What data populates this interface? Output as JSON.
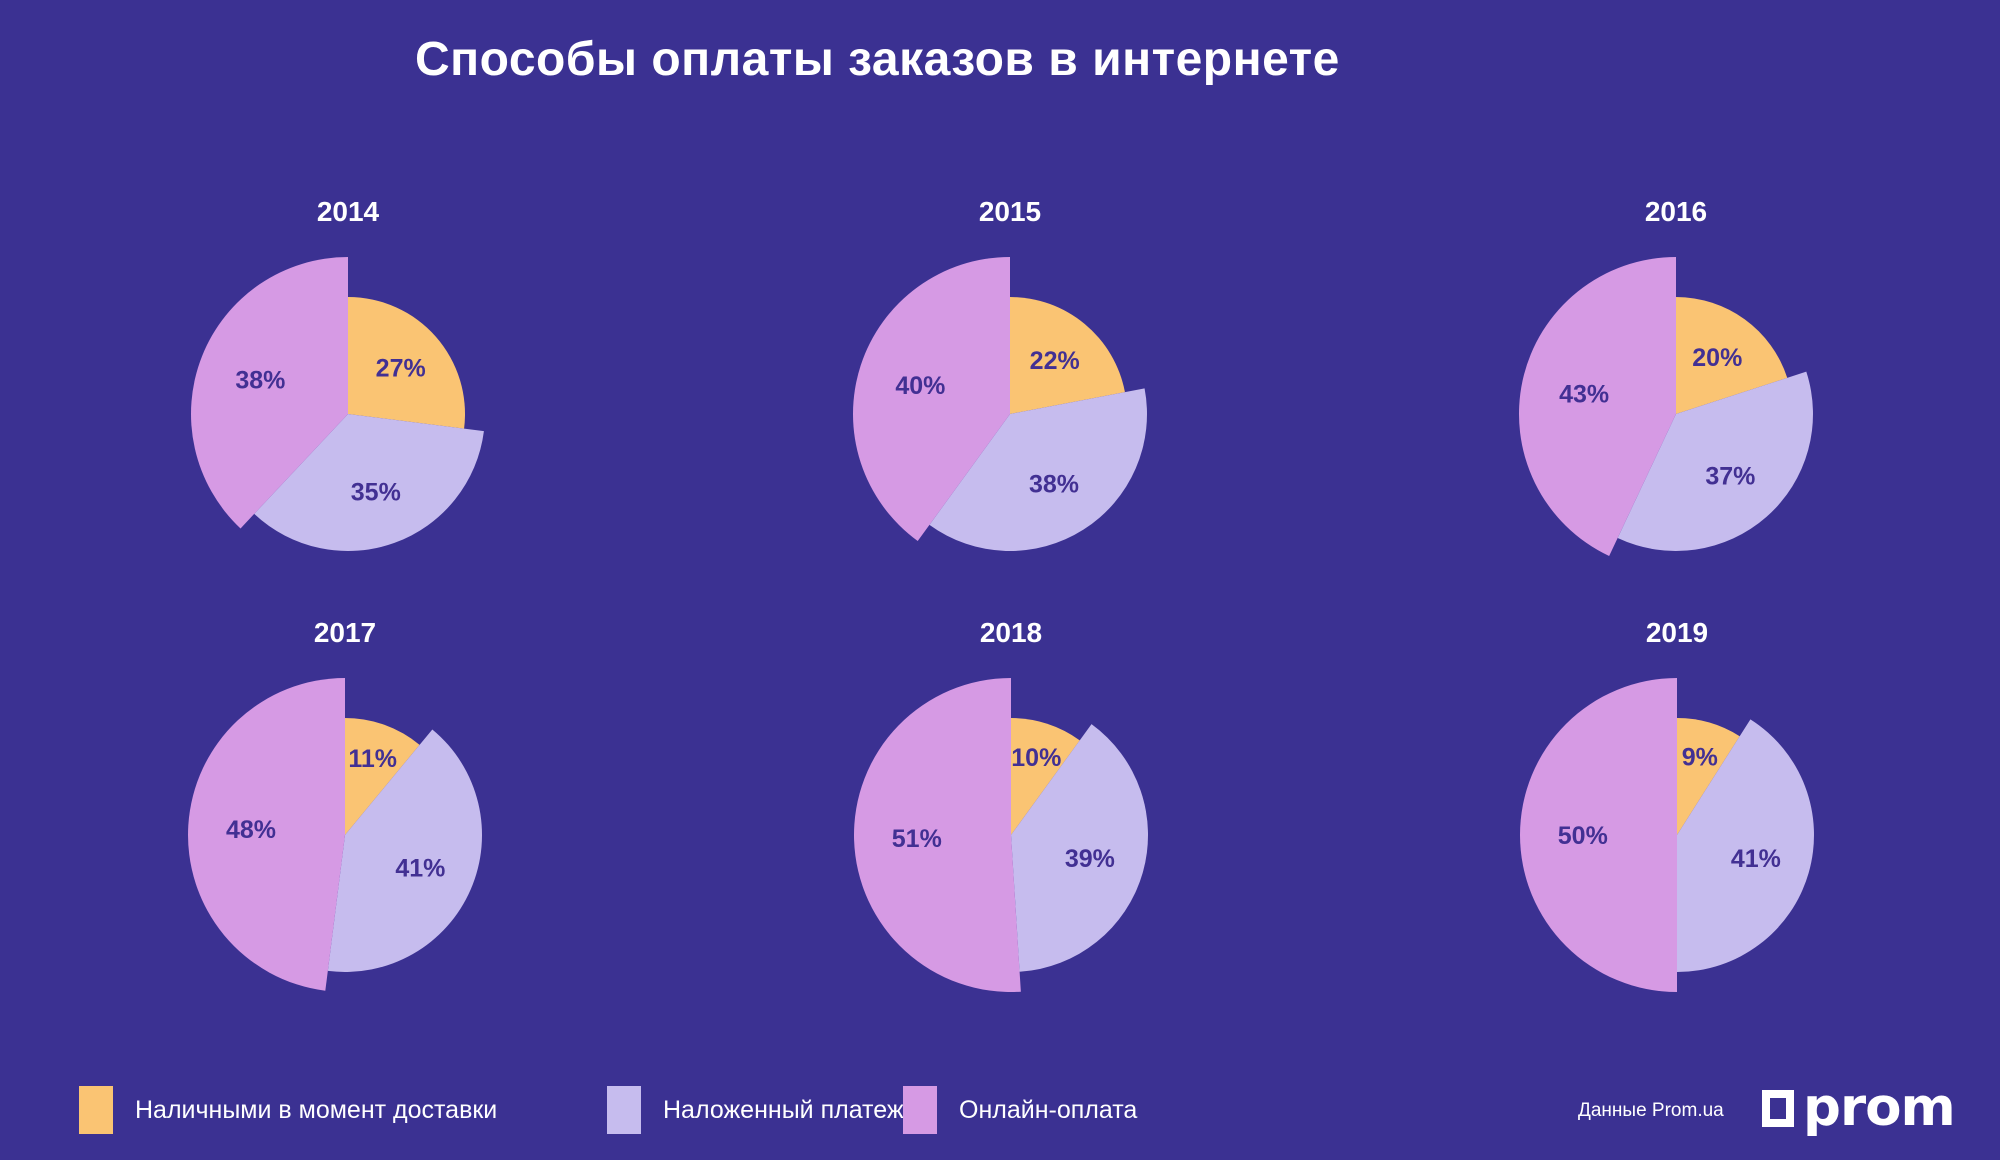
{
  "title": "Способы оплаты заказов в интернете",
  "colors": {
    "background": "#3B3192",
    "cash": "#FAC473",
    "cod": "#C6BCEE",
    "online": "#D69AE4",
    "value_label": "#423093",
    "text": "#FFFFFF"
  },
  "legend": {
    "position": "bottom",
    "items": [
      {
        "key": "cash",
        "label": "Наличными в момент доставки",
        "color": "#FAC473"
      },
      {
        "key": "cod",
        "label": "Наложенный платеж",
        "color": "#C6BCEE"
      },
      {
        "key": "online",
        "label": "Онлайн-оплата",
        "color": "#D69AE4"
      }
    ]
  },
  "footer": {
    "source": "Данные Prom.ua",
    "logo_text": "prom"
  },
  "chart_data": [
    {
      "type": "pie",
      "title": "2014",
      "categories": [
        "Наличными в момент доставки",
        "Наложенный платеж",
        "Онлайн-оплата"
      ],
      "values": [
        27,
        35,
        38
      ],
      "unit": "%",
      "colors": [
        "#FAC473",
        "#C6BCEE",
        "#D69AE4"
      ],
      "slice_radii": [
        117,
        137,
        157
      ],
      "start_angle": "12-oclock",
      "direction": "clockwise",
      "legend_position": "bottom"
    },
    {
      "type": "pie",
      "title": "2015",
      "categories": [
        "Наличными в момент доставки",
        "Наложенный платеж",
        "Онлайн-оплата"
      ],
      "values": [
        22,
        38,
        40
      ],
      "unit": "%",
      "colors": [
        "#FAC473",
        "#C6BCEE",
        "#D69AE4"
      ],
      "slice_radii": [
        117,
        137,
        157
      ],
      "start_angle": "12-oclock",
      "direction": "clockwise",
      "legend_position": "bottom"
    },
    {
      "type": "pie",
      "title": "2016",
      "categories": [
        "Наличными в момент доставки",
        "Наложенный платеж",
        "Онлайн-оплата"
      ],
      "values": [
        20,
        37,
        43
      ],
      "unit": "%",
      "colors": [
        "#FAC473",
        "#C6BCEE",
        "#D69AE4"
      ],
      "slice_radii": [
        117,
        137,
        157
      ],
      "start_angle": "12-oclock",
      "direction": "clockwise",
      "legend_position": "bottom"
    },
    {
      "type": "pie",
      "title": "2017",
      "categories": [
        "Наличными в момент доставки",
        "Наложенный платеж",
        "Онлайн-оплата"
      ],
      "values": [
        11,
        41,
        48
      ],
      "unit": "%",
      "colors": [
        "#FAC473",
        "#C6BCEE",
        "#D69AE4"
      ],
      "slice_radii": [
        117,
        137,
        157
      ],
      "start_angle": "12-oclock",
      "direction": "clockwise",
      "legend_position": "bottom"
    },
    {
      "type": "pie",
      "title": "2018",
      "categories": [
        "Наличными в момент доставки",
        "Наложенный платеж",
        "Онлайн-оплата"
      ],
      "values": [
        10,
        39,
        51
      ],
      "unit": "%",
      "colors": [
        "#FAC473",
        "#C6BCEE",
        "#D69AE4"
      ],
      "slice_radii": [
        117,
        137,
        157
      ],
      "start_angle": "12-oclock",
      "direction": "clockwise",
      "legend_position": "bottom"
    },
    {
      "type": "pie",
      "title": "2019",
      "categories": [
        "Наличными в момент доставки",
        "Наложенный платеж",
        "Онлайн-оплата"
      ],
      "values": [
        9,
        41,
        50
      ],
      "unit": "%",
      "colors": [
        "#FAC473",
        "#C6BCEE",
        "#D69AE4"
      ],
      "slice_radii": [
        117,
        137,
        157
      ],
      "start_angle": "12-oclock",
      "direction": "clockwise",
      "legend_position": "bottom"
    }
  ]
}
